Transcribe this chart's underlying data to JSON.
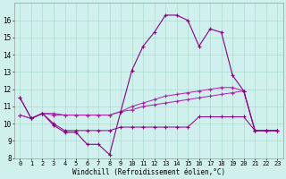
{
  "x": [
    0,
    1,
    2,
    3,
    4,
    5,
    6,
    7,
    8,
    9,
    10,
    11,
    12,
    13,
    14,
    15,
    16,
    17,
    18,
    19,
    20,
    21,
    22,
    23
  ],
  "line_main": [
    11.5,
    10.3,
    10.6,
    9.9,
    9.5,
    9.5,
    8.8,
    8.8,
    8.2,
    10.7,
    13.1,
    14.5,
    15.3,
    16.3,
    16.3,
    16.0,
    14.5,
    15.5,
    15.3,
    12.8,
    11.9,
    9.6,
    9.6,
    9.6
  ],
  "line_flat1": [
    10.5,
    10.3,
    10.6,
    10.0,
    9.6,
    9.6,
    9.6,
    9.6,
    9.6,
    9.8,
    9.8,
    9.8,
    9.8,
    9.8,
    9.8,
    9.8,
    10.4,
    10.4,
    10.4,
    10.4,
    10.4,
    9.6,
    9.6,
    9.6
  ],
  "line_mid": [
    10.5,
    10.3,
    10.6,
    10.5,
    10.5,
    10.5,
    10.5,
    10.5,
    10.5,
    10.7,
    10.8,
    11.0,
    11.1,
    11.2,
    11.3,
    11.4,
    11.5,
    11.6,
    11.7,
    11.8,
    11.9,
    9.6,
    9.6,
    9.6
  ],
  "line_top": [
    11.5,
    10.3,
    10.6,
    10.6,
    10.5,
    10.5,
    10.5,
    10.5,
    10.5,
    10.7,
    11.0,
    11.2,
    11.4,
    11.6,
    11.7,
    11.8,
    11.9,
    12.0,
    12.1,
    12.1,
    11.9,
    9.6,
    9.6,
    9.6
  ],
  "bg_color": "#cff0ec",
  "grid_color": "#aaddcc",
  "line_color_dark": "#880088",
  "line_color_mid": "#aa22aa",
  "xlabel": "Windchill (Refroidissement éolien,°C)",
  "ylim": [
    8,
    17
  ],
  "xlim": [
    -0.5,
    23.5
  ],
  "yticks": [
    8,
    9,
    10,
    11,
    12,
    13,
    14,
    15,
    16
  ],
  "xticks": [
    0,
    1,
    2,
    3,
    4,
    5,
    6,
    7,
    8,
    9,
    10,
    11,
    12,
    13,
    14,
    15,
    16,
    17,
    18,
    19,
    20,
    21,
    22,
    23
  ],
  "xlabel_fontsize": 5.5,
  "tick_fontsize": 5.0
}
